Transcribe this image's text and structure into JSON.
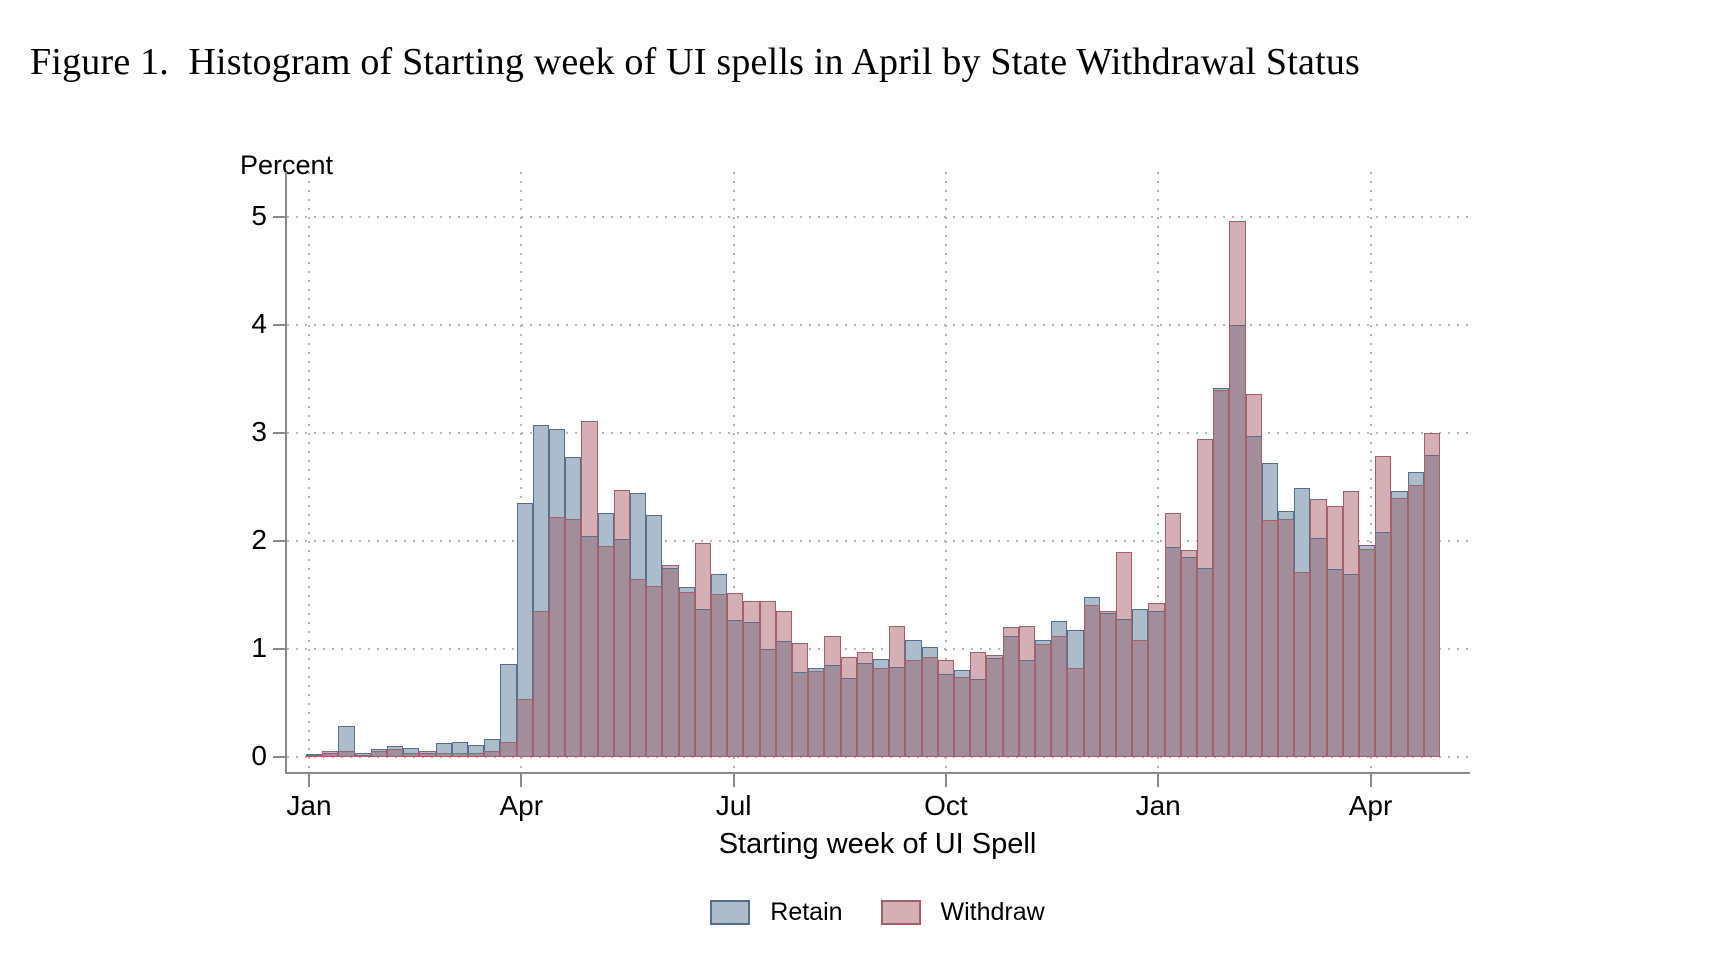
{
  "figure_title": "Figure 1.  Histogram of Starting week of UI spells in April by State Withdrawal Status",
  "chart_data": {
    "type": "bar",
    "subtype": "overlaid-histogram",
    "title": "Figure 1. Histogram of Starting week of UI spells in April by State Withdrawal Status",
    "xlabel": "Starting week of UI Spell",
    "ylabel": "Percent",
    "ylim": [
      0,
      5
    ],
    "yticks": [
      "0",
      "1",
      "2",
      "3",
      "4",
      "5"
    ],
    "xticks": [
      "Jan",
      "Apr",
      "Jul",
      "Oct",
      "Jan",
      "Apr"
    ],
    "x_unit": "week (one bar per week, spanning Jan of year 1 through mid-May of year 2)",
    "grid": "dotted horizontal and vertical gridlines at labeled ticks",
    "legend_position": "bottom-center",
    "colors": {
      "retain_fill": "#adbcca",
      "retain_border": "#54708e",
      "withdraw_fill": "#d4afb6",
      "withdraw_border": "#a4616b",
      "overlap_fill": "#a28d9a",
      "axis_line": "#8a8a8a",
      "grid_dot": "#b6b6b6"
    },
    "series": [
      {
        "name": "Retain",
        "values": [
          0.03,
          0.04,
          0.29,
          0.04,
          0.07,
          0.1,
          0.08,
          0.04,
          0.13,
          0.14,
          0.11,
          0.17,
          0.86,
          2.35,
          3.07,
          3.04,
          2.78,
          2.05,
          2.26,
          2.02,
          2.44,
          2.24,
          1.75,
          1.57,
          1.37,
          1.69,
          1.27,
          1.25,
          1.0,
          1.07,
          0.79,
          0.82,
          0.85,
          0.73,
          0.87,
          0.91,
          0.83,
          1.08,
          1.02,
          0.77,
          0.81,
          0.72,
          0.92,
          1.12,
          0.9,
          1.08,
          1.26,
          1.18,
          1.48,
          1.33,
          1.28,
          1.37,
          1.35,
          1.94,
          1.85,
          1.75,
          3.42,
          4.0,
          2.97,
          2.72,
          2.28,
          2.49,
          2.03,
          1.74,
          1.69,
          1.96,
          2.08,
          2.46,
          2.64,
          2.8
        ]
      },
      {
        "name": "Withdraw",
        "values": [
          0.02,
          0.06,
          0.06,
          0.02,
          0.06,
          0.07,
          0.04,
          0.06,
          0.04,
          0.04,
          0.04,
          0.06,
          0.14,
          0.54,
          1.35,
          2.22,
          2.2,
          3.11,
          1.95,
          2.47,
          1.65,
          1.58,
          1.78,
          1.53,
          1.98,
          1.51,
          1.52,
          1.44,
          1.44,
          1.35,
          1.06,
          0.8,
          1.12,
          0.93,
          0.97,
          0.82,
          1.21,
          0.9,
          0.93,
          0.9,
          0.74,
          0.97,
          0.94,
          1.2,
          1.21,
          1.05,
          1.12,
          0.82,
          1.41,
          1.35,
          1.9,
          1.08,
          1.43,
          2.26,
          1.92,
          2.94,
          3.4,
          4.96,
          3.36,
          2.19,
          2.2,
          1.71,
          2.39,
          2.32,
          2.46,
          1.93,
          2.79,
          2.4,
          2.52,
          3.0
        ]
      }
    ],
    "legend": [
      {
        "label": "Retain"
      },
      {
        "label": "Withdraw"
      }
    ]
  }
}
